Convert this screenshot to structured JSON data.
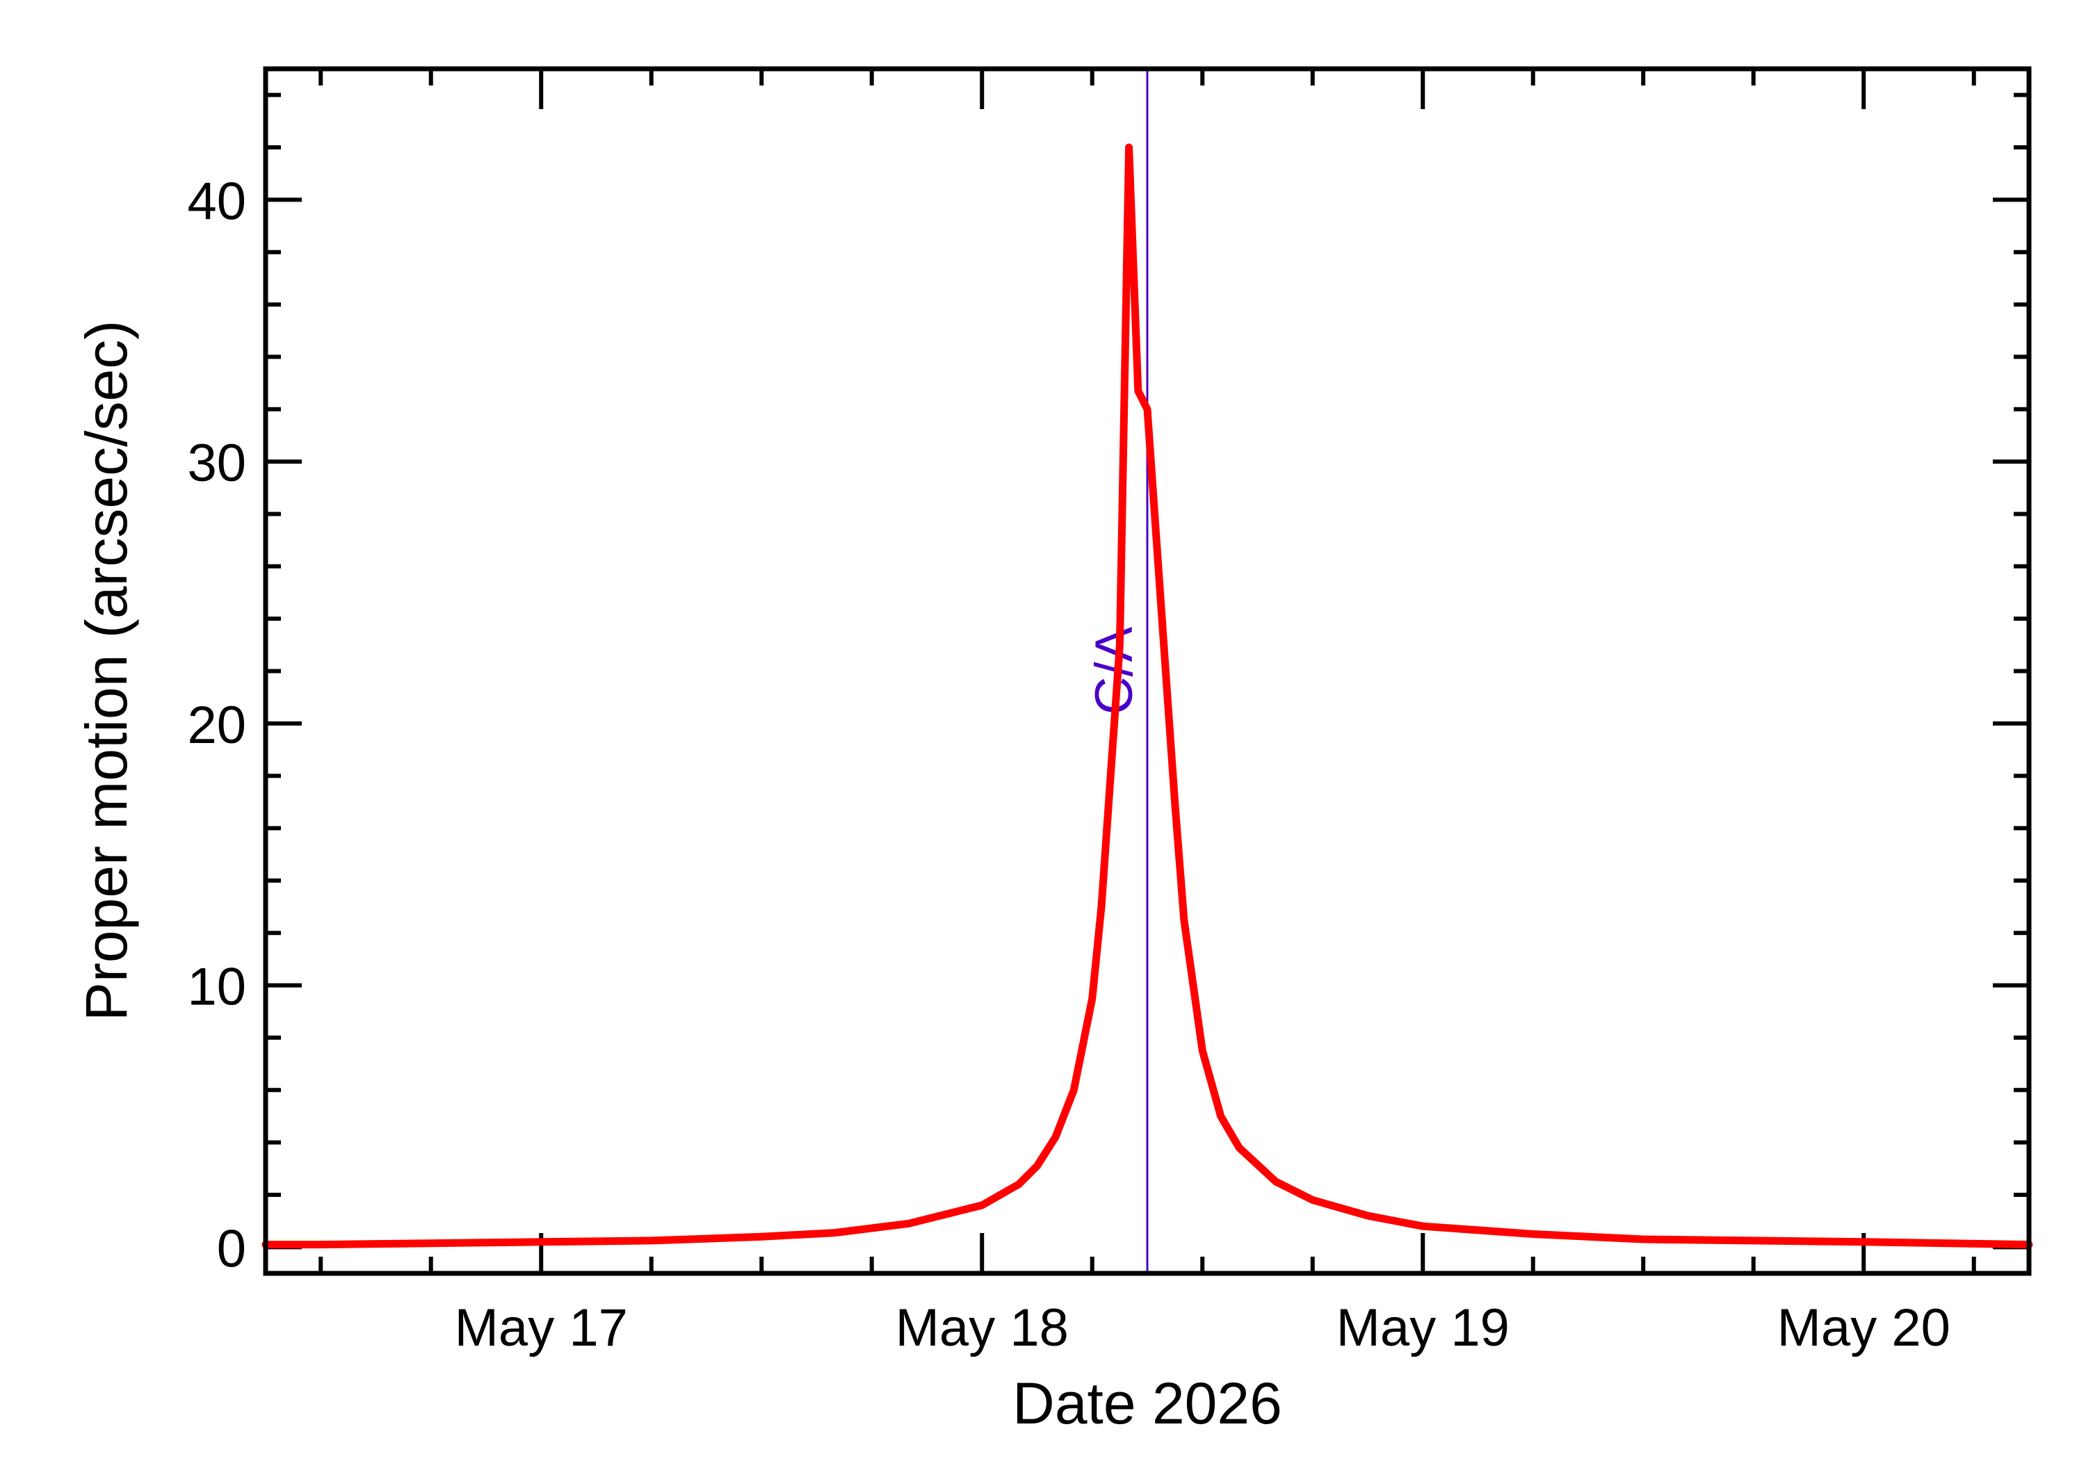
{
  "chart_data": {
    "type": "line",
    "xlabel": "Date 2026",
    "ylabel": "Proper motion (arcsec/sec)",
    "xlim": [
      "2026-05-16 09:00",
      "2026-05-20 09:00"
    ],
    "ylim": [
      -1,
      45
    ],
    "x_ticks": [
      {
        "date": "2026-05-17 00:00",
        "label": "May 17"
      },
      {
        "date": "2026-05-18 00:00",
        "label": "May 18"
      },
      {
        "date": "2026-05-19 00:00",
        "label": "May 19"
      },
      {
        "date": "2026-05-20 00:00",
        "label": "May 20"
      }
    ],
    "y_ticks": [
      0,
      10,
      20,
      30,
      40
    ],
    "grid": false,
    "colors": {
      "series": "#ff0000",
      "annotation": "#4a00c8",
      "axes": "#000000"
    },
    "annotations": [
      {
        "label": "C/A",
        "date": "2026-05-18 09:00"
      }
    ],
    "series": [
      {
        "points": [
          [
            "2026-05-16 09:00",
            0.1
          ],
          [
            "2026-05-16 12:00",
            0.1
          ],
          [
            "2026-05-16 18:00",
            0.15
          ],
          [
            "2026-05-17 00:00",
            0.2
          ],
          [
            "2026-05-17 06:00",
            0.25
          ],
          [
            "2026-05-17 12:00",
            0.4
          ],
          [
            "2026-05-17 16:00",
            0.55
          ],
          [
            "2026-05-17 20:00",
            0.9
          ],
          [
            "2026-05-18 00:00",
            1.6
          ],
          [
            "2026-05-18 02:00",
            2.4
          ],
          [
            "2026-05-18 03:00",
            3.1
          ],
          [
            "2026-05-18 04:00",
            4.2
          ],
          [
            "2026-05-18 05:00",
            6.0
          ],
          [
            "2026-05-18 06:00",
            9.5
          ],
          [
            "2026-05-18 06:30",
            13.0
          ],
          [
            "2026-05-18 07:00",
            18.0
          ],
          [
            "2026-05-18 07:30",
            23.0
          ],
          [
            "2026-05-18 08:00",
            42.0
          ],
          [
            "2026-05-18 08:30",
            32.7
          ],
          [
            "2026-05-18 09:00",
            32.0
          ],
          [
            "2026-05-18 09:30",
            27.0
          ],
          [
            "2026-05-18 10:00",
            22.0
          ],
          [
            "2026-05-18 10:30",
            17.0
          ],
          [
            "2026-05-18 11:00",
            12.5
          ],
          [
            "2026-05-18 12:00",
            7.5
          ],
          [
            "2026-05-18 13:00",
            5.0
          ],
          [
            "2026-05-18 14:00",
            3.8
          ],
          [
            "2026-05-18 16:00",
            2.5
          ],
          [
            "2026-05-18 18:00",
            1.8
          ],
          [
            "2026-05-18 21:00",
            1.2
          ],
          [
            "2026-05-19 00:00",
            0.8
          ],
          [
            "2026-05-19 06:00",
            0.5
          ],
          [
            "2026-05-19 12:00",
            0.3
          ],
          [
            "2026-05-20 00:00",
            0.2
          ],
          [
            "2026-05-20 09:00",
            0.1
          ]
        ]
      }
    ]
  }
}
